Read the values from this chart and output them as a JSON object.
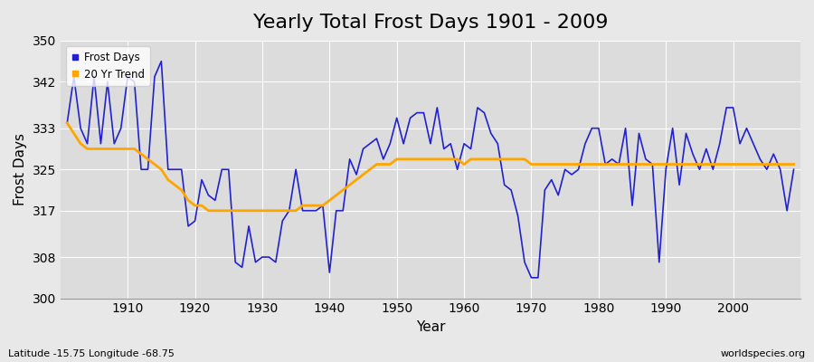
{
  "title": "Yearly Total Frost Days 1901 - 2009",
  "xlabel": "Year",
  "ylabel": "Frost Days",
  "lat_lon_label": "Latitude -15.75 Longitude -68.75",
  "source_label": "worldspecies.org",
  "ylim": [
    300,
    350
  ],
  "yticks": [
    300,
    308,
    317,
    325,
    333,
    342,
    350
  ],
  "years": [
    1901,
    1902,
    1903,
    1904,
    1905,
    1906,
    1907,
    1908,
    1909,
    1910,
    1911,
    1912,
    1913,
    1914,
    1915,
    1916,
    1917,
    1918,
    1919,
    1920,
    1921,
    1922,
    1923,
    1924,
    1925,
    1926,
    1927,
    1928,
    1929,
    1930,
    1931,
    1932,
    1933,
    1934,
    1935,
    1936,
    1937,
    1938,
    1939,
    1940,
    1941,
    1942,
    1943,
    1944,
    1945,
    1946,
    1947,
    1948,
    1949,
    1950,
    1951,
    1952,
    1953,
    1954,
    1955,
    1956,
    1957,
    1958,
    1959,
    1960,
    1961,
    1962,
    1963,
    1964,
    1965,
    1966,
    1967,
    1968,
    1969,
    1970,
    1971,
    1972,
    1973,
    1974,
    1975,
    1976,
    1977,
    1978,
    1979,
    1980,
    1981,
    1982,
    1983,
    1984,
    1985,
    1986,
    1987,
    1988,
    1989,
    1990,
    1991,
    1992,
    1993,
    1994,
    1995,
    1996,
    1997,
    1998,
    1999,
    2000,
    2001,
    2002,
    2003,
    2004,
    2005,
    2006,
    2007,
    2008,
    2009
  ],
  "frost_days": [
    334,
    343,
    333,
    330,
    343,
    330,
    342,
    330,
    333,
    343,
    342,
    325,
    325,
    343,
    346,
    325,
    325,
    325,
    314,
    315,
    323,
    320,
    319,
    325,
    325,
    307,
    306,
    314,
    307,
    308,
    308,
    307,
    315,
    317,
    325,
    317,
    317,
    317,
    318,
    305,
    317,
    317,
    327,
    324,
    329,
    330,
    331,
    327,
    330,
    335,
    330,
    335,
    336,
    336,
    330,
    337,
    329,
    330,
    325,
    330,
    329,
    337,
    336,
    332,
    330,
    322,
    321,
    316,
    307,
    304,
    304,
    321,
    323,
    320,
    325,
    324,
    325,
    330,
    333,
    333,
    326,
    327,
    326,
    333,
    318,
    332,
    327,
    326,
    307,
    325,
    333,
    322,
    332,
    328,
    325,
    329,
    325,
    330,
    337,
    337,
    330,
    333,
    330,
    327,
    325,
    328,
    325,
    317,
    325
  ],
  "trend_years": [
    1901,
    1902,
    1903,
    1904,
    1905,
    1906,
    1907,
    1908,
    1909,
    1910,
    1911,
    1912,
    1913,
    1914,
    1915,
    1916,
    1917,
    1918,
    1919,
    1920,
    1921,
    1922,
    1923,
    1924,
    1925,
    1926,
    1927,
    1928,
    1929,
    1930,
    1931,
    1932,
    1933,
    1934,
    1935,
    1936,
    1937,
    1938,
    1939,
    1940,
    1941,
    1942,
    1943,
    1944,
    1945,
    1946,
    1947,
    1948,
    1949,
    1950,
    1951,
    1952,
    1953,
    1954,
    1955,
    1956,
    1957,
    1958,
    1959,
    1960,
    1961,
    1962,
    1963,
    1964,
    1965,
    1966,
    1967,
    1968,
    1969,
    1970,
    1971,
    1972,
    1973,
    1974,
    1975,
    1976,
    1977,
    1978,
    1979,
    1980,
    1981,
    1982,
    1983,
    1984,
    1985,
    1986,
    1987,
    1988,
    1989,
    1990,
    1991,
    1992,
    1993,
    1994,
    1995,
    1996,
    1997,
    1998,
    1999,
    2000,
    2001,
    2002,
    2003,
    2004,
    2005,
    2006,
    2007,
    2008,
    2009
  ],
  "trend_values": [
    334,
    332,
    330,
    329,
    329,
    329,
    329,
    329,
    329,
    329,
    329,
    328,
    327,
    326,
    325,
    323,
    322,
    321,
    319,
    318,
    318,
    317,
    317,
    317,
    317,
    317,
    317,
    317,
    317,
    317,
    317,
    317,
    317,
    317,
    317,
    318,
    318,
    318,
    318,
    319,
    320,
    321,
    322,
    323,
    324,
    325,
    326,
    326,
    326,
    327,
    327,
    327,
    327,
    327,
    327,
    327,
    327,
    327,
    327,
    326,
    327,
    327,
    327,
    327,
    327,
    327,
    327,
    327,
    327,
    326,
    326,
    326,
    326,
    326,
    326,
    326,
    326,
    326,
    326,
    326,
    326,
    326,
    326,
    326,
    326,
    326,
    326,
    326,
    326,
    326,
    326,
    326,
    326,
    326,
    326,
    326,
    326,
    326,
    326,
    326,
    326,
    326,
    326,
    326,
    326,
    326,
    326,
    326,
    326
  ],
  "line_color": "#2222cc",
  "trend_color": "#FFA500",
  "bg_color": "#e8e8e8",
  "plot_bg_color": "#dcdcdc",
  "grid_color": "#ffffff",
  "title_fontsize": 16,
  "label_fontsize": 11,
  "tick_fontsize": 10
}
